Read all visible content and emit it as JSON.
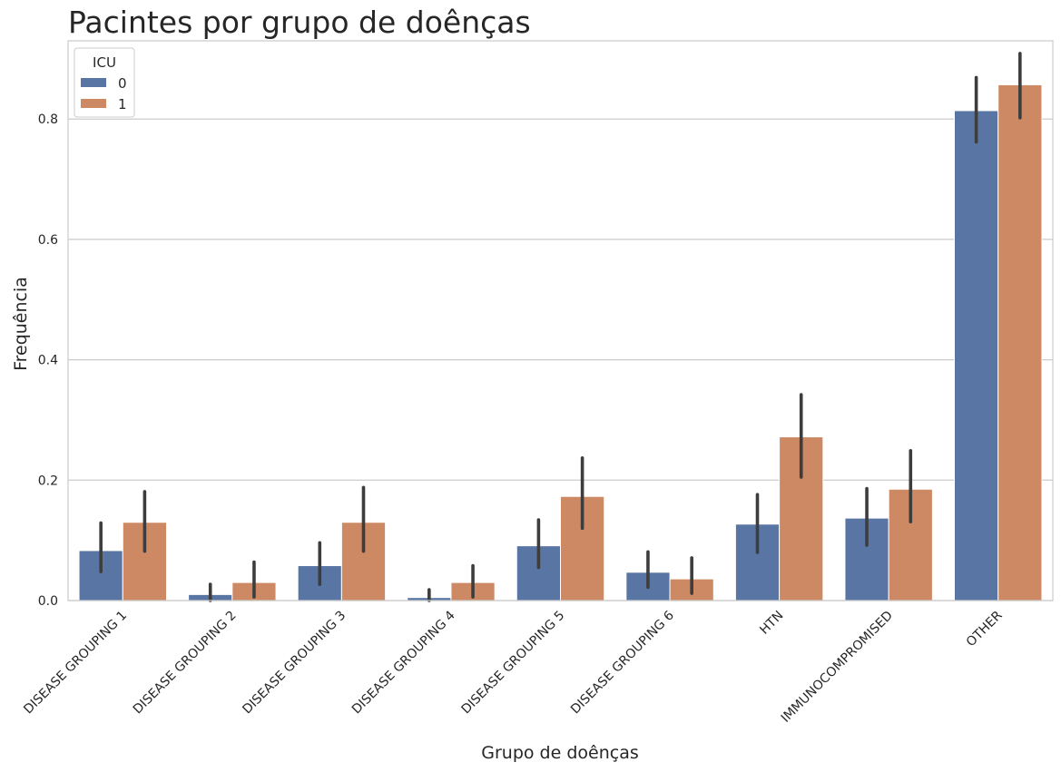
{
  "chart_data": {
    "type": "bar",
    "title": "Pacintes por grupo de doênças",
    "xlabel": "Grupo de doênças",
    "ylabel": "Frequência",
    "ylim": [
      0,
      0.93
    ],
    "yticks": [
      "0.0",
      "0.2",
      "0.4",
      "0.6",
      "0.8"
    ],
    "grid": true,
    "legend": {
      "title": "ICU",
      "placement": "top-left"
    },
    "categories": [
      "DISEASE GROUPING 1",
      "DISEASE GROUPING 2",
      "DISEASE GROUPING 3",
      "DISEASE GROUPING 4",
      "DISEASE GROUPING 5",
      "DISEASE GROUPING 6",
      "HTN",
      "IMMUNOCOMPROMISED",
      "OTHER"
    ],
    "series": [
      {
        "name": "0",
        "color": "#5975a4",
        "values": [
          0.083,
          0.01,
          0.058,
          0.005,
          0.091,
          0.047,
          0.127,
          0.137,
          0.814
        ],
        "error_low": [
          0.048,
          0.0,
          0.027,
          0.0,
          0.055,
          0.022,
          0.08,
          0.092,
          0.762
        ],
        "error_high": [
          0.129,
          0.027,
          0.096,
          0.018,
          0.134,
          0.081,
          0.176,
          0.186,
          0.869
        ]
      },
      {
        "name": "1",
        "color": "#cc8963",
        "values": [
          0.13,
          0.03,
          0.13,
          0.03,
          0.173,
          0.036,
          0.272,
          0.185,
          0.857
        ],
        "error_low": [
          0.082,
          0.006,
          0.082,
          0.006,
          0.12,
          0.012,
          0.205,
          0.131,
          0.802
        ],
        "error_high": [
          0.181,
          0.064,
          0.188,
          0.058,
          0.237,
          0.071,
          0.342,
          0.249,
          0.909
        ]
      }
    ]
  }
}
